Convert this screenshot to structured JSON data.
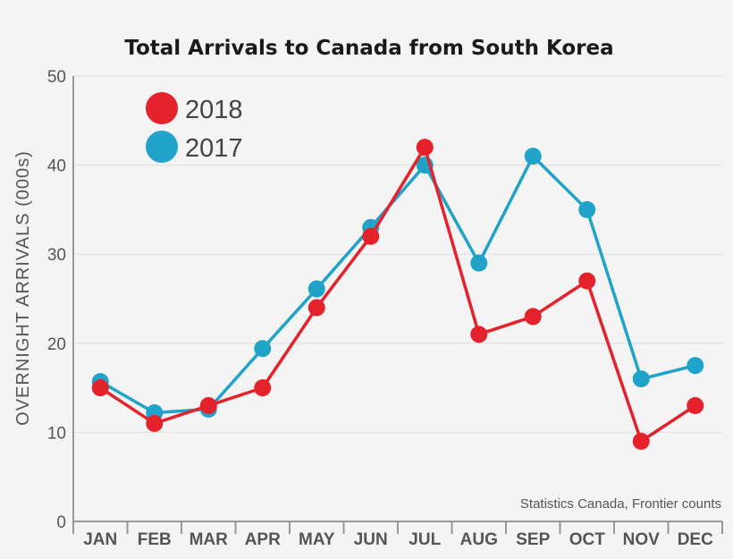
{
  "chart_data": {
    "type": "line",
    "title": "Total Arrivals to Canada from South Korea",
    "ylabel": "OVERNIGHT ARRIVALS (000s)",
    "xlabel": "",
    "categories": [
      "JAN",
      "FEB",
      "MAR",
      "APR",
      "MAY",
      "JUN",
      "JUL",
      "AUG",
      "SEP",
      "OCT",
      "NOV",
      "DEC"
    ],
    "ylim": [
      0,
      50
    ],
    "yticks": [
      "0",
      "10",
      "20",
      "30",
      "40",
      "50"
    ],
    "grid": true,
    "legend_position": "top-left",
    "series": [
      {
        "name": "2018",
        "color": "#e3222c",
        "values": [
          15,
          11,
          13,
          15,
          24,
          32,
          42,
          21,
          23,
          27,
          9,
          13
        ]
      },
      {
        "name": "2017",
        "color": "#1fa3c9",
        "values": [
          15.7,
          12.2,
          12.6,
          19.4,
          26.1,
          33,
          40,
          29,
          41,
          35,
          16,
          17.5
        ]
      }
    ],
    "source": "Statistics Canada, Frontier counts"
  }
}
